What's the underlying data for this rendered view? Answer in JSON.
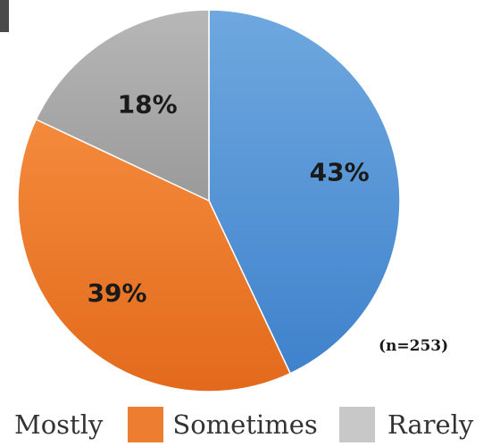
{
  "chart_data": {
    "type": "pie",
    "title": "",
    "annotation": "(n=253)",
    "series": [
      {
        "name": "Mostly",
        "value": 43,
        "label": "43%",
        "color": "#5b9bd5"
      },
      {
        "name": "Sometimes",
        "value": 39,
        "label": "39%",
        "color": "#ed7d31"
      },
      {
        "name": "Rarely",
        "value": 18,
        "label": "18%",
        "color": "#a5a5a5"
      }
    ],
    "legend": "bottom"
  }
}
